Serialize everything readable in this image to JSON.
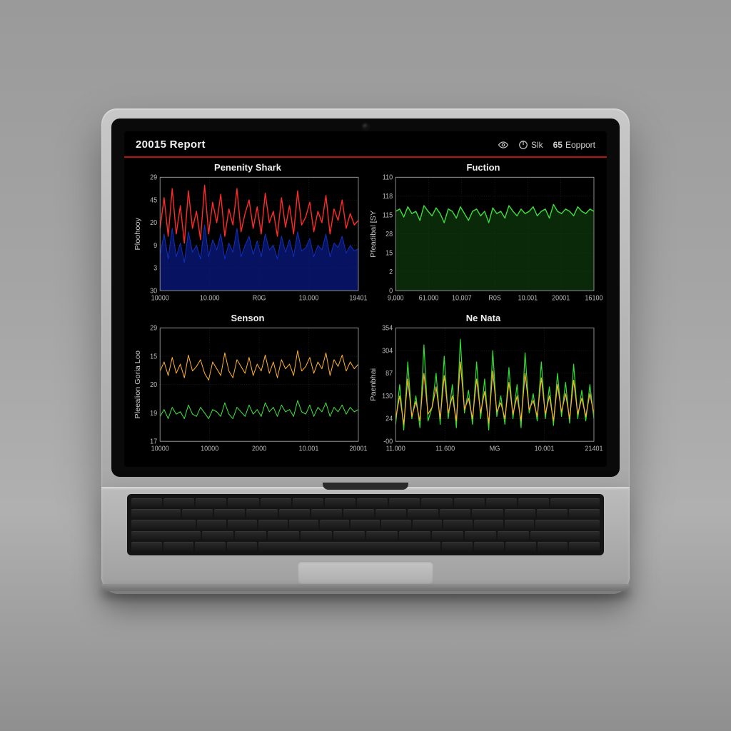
{
  "header": {
    "title": "20015 Report",
    "accent_color": "#b31919",
    "right": {
      "eye_label": "",
      "power_label": "Slk",
      "status_value": "65",
      "status_label": "Eopport"
    }
  },
  "screen": {
    "background": "#000000",
    "text_color": "#eeeeee",
    "grid_color": "#333333",
    "axis_color": "#888888",
    "tick_color": "#bbbbbb",
    "title_fontsize": 13,
    "tick_fontsize": 9,
    "ylabel_fontsize": 10
  },
  "charts": {
    "top_left": {
      "title": "Penenity Shark",
      "ylabel": "Ploohooy",
      "type": "line-area",
      "yticks": [
        "29",
        "45",
        "20",
        "9",
        "3",
        "30"
      ],
      "xticks": [
        "10000",
        "10.000",
        "R0G",
        "19.000",
        "19401"
      ],
      "series": [
        {
          "name": "red-jagged",
          "stroke": "#ff2a2a",
          "stroke_width": 1.4,
          "fill": "none",
          "points": [
            0.55,
            0.82,
            0.48,
            0.9,
            0.5,
            0.75,
            0.42,
            0.88,
            0.55,
            0.7,
            0.45,
            0.93,
            0.5,
            0.78,
            0.6,
            0.85,
            0.48,
            0.72,
            0.58,
            0.9,
            0.52,
            0.68,
            0.8,
            0.55,
            0.74,
            0.5,
            0.86,
            0.6,
            0.7,
            0.48,
            0.82,
            0.56,
            0.75,
            0.5,
            0.88,
            0.58,
            0.65,
            0.78,
            0.52,
            0.7,
            0.6,
            0.84,
            0.5,
            0.72,
            0.62,
            0.8,
            0.55,
            0.68,
            0.58,
            0.62
          ]
        },
        {
          "name": "blue-area",
          "stroke": "#1030c0",
          "stroke_width": 1,
          "fill": "#0a1a80",
          "fill_opacity": 0.75,
          "points": [
            0.32,
            0.5,
            0.28,
            0.55,
            0.3,
            0.42,
            0.25,
            0.52,
            0.34,
            0.4,
            0.28,
            0.58,
            0.3,
            0.45,
            0.36,
            0.5,
            0.28,
            0.42,
            0.34,
            0.55,
            0.3,
            0.4,
            0.48,
            0.32,
            0.44,
            0.3,
            0.5,
            0.36,
            0.4,
            0.28,
            0.48,
            0.34,
            0.45,
            0.3,
            0.52,
            0.35,
            0.38,
            0.46,
            0.3,
            0.4,
            0.36,
            0.5,
            0.3,
            0.42,
            0.38,
            0.48,
            0.33,
            0.4,
            0.35,
            0.37
          ]
        }
      ]
    },
    "top_right": {
      "title": "Fuction",
      "ylabel": "Pfeadibal [SY",
      "type": "line-area",
      "yticks": [
        "110",
        "118",
        "115",
        "28",
        "15",
        "2",
        "0"
      ],
      "xticks": [
        "9,000",
        "61.000",
        "10,007",
        "R0S",
        "10.001",
        "20001",
        "16100"
      ],
      "series": [
        {
          "name": "green-area",
          "stroke": "#3fd83f",
          "stroke_width": 1.4,
          "fill": "#0d3a0d",
          "fill_opacity": 0.7,
          "points": [
            0.7,
            0.72,
            0.65,
            0.74,
            0.68,
            0.7,
            0.62,
            0.75,
            0.7,
            0.66,
            0.73,
            0.68,
            0.6,
            0.72,
            0.7,
            0.64,
            0.74,
            0.68,
            0.62,
            0.7,
            0.72,
            0.66,
            0.7,
            0.6,
            0.73,
            0.68,
            0.7,
            0.64,
            0.75,
            0.7,
            0.66,
            0.72,
            0.68,
            0.7,
            0.74,
            0.66,
            0.7,
            0.72,
            0.64,
            0.76,
            0.7,
            0.68,
            0.72,
            0.7,
            0.66,
            0.74,
            0.7,
            0.68,
            0.72,
            0.7
          ]
        }
      ]
    },
    "bottom_left": {
      "title": "Senson",
      "ylabel": "Pleealion Goria Loo",
      "type": "multi-line",
      "yticks": [
        "29",
        "15",
        "20",
        "19",
        "17"
      ],
      "xticks": [
        "10000",
        "10000",
        "2000",
        "10.001",
        "20001"
      ],
      "series": [
        {
          "name": "orange-noise",
          "stroke": "#ffb030",
          "stroke_width": 1,
          "fill": "none",
          "points": [
            0.62,
            0.7,
            0.58,
            0.74,
            0.6,
            0.68,
            0.56,
            0.76,
            0.62,
            0.66,
            0.72,
            0.6,
            0.54,
            0.7,
            0.64,
            0.58,
            0.78,
            0.62,
            0.56,
            0.72,
            0.66,
            0.6,
            0.74,
            0.58,
            0.68,
            0.62,
            0.76,
            0.6,
            0.7,
            0.56,
            0.72,
            0.64,
            0.68,
            0.58,
            0.8,
            0.62,
            0.66,
            0.74,
            0.6,
            0.7,
            0.64,
            0.78,
            0.58,
            0.72,
            0.66,
            0.76,
            0.62,
            0.7,
            0.64,
            0.68
          ]
        },
        {
          "name": "green-lower",
          "stroke": "#40e040",
          "stroke_width": 1,
          "fill": "none",
          "points": [
            0.22,
            0.28,
            0.2,
            0.3,
            0.24,
            0.26,
            0.2,
            0.32,
            0.24,
            0.22,
            0.3,
            0.25,
            0.2,
            0.28,
            0.26,
            0.22,
            0.34,
            0.24,
            0.2,
            0.3,
            0.26,
            0.22,
            0.32,
            0.24,
            0.28,
            0.22,
            0.34,
            0.26,
            0.3,
            0.22,
            0.32,
            0.26,
            0.28,
            0.22,
            0.36,
            0.26,
            0.24,
            0.32,
            0.22,
            0.3,
            0.26,
            0.34,
            0.22,
            0.3,
            0.26,
            0.32,
            0.24,
            0.3,
            0.26,
            0.28
          ]
        }
      ]
    },
    "bottom_right": {
      "title": "Ne Nata",
      "ylabel": "Paenbhai",
      "type": "multi-line",
      "yticks": [
        "354",
        "304",
        "87",
        "130",
        "24",
        "-00"
      ],
      "xticks": [
        "11.000",
        "11.600",
        "MG",
        "10.001",
        "21401"
      ],
      "series": [
        {
          "name": "green-spikes",
          "stroke": "#30e030",
          "stroke_width": 1.2,
          "fill": "none",
          "points": [
            0.15,
            0.5,
            0.1,
            0.7,
            0.2,
            0.4,
            0.12,
            0.85,
            0.18,
            0.3,
            0.6,
            0.15,
            0.75,
            0.2,
            0.5,
            0.12,
            0.9,
            0.25,
            0.45,
            0.15,
            0.7,
            0.2,
            0.55,
            0.1,
            0.8,
            0.22,
            0.4,
            0.15,
            0.65,
            0.2,
            0.5,
            0.12,
            0.78,
            0.25,
            0.42,
            0.18,
            0.7,
            0.2,
            0.48,
            0.14,
            0.6,
            0.22,
            0.52,
            0.16,
            0.68,
            0.2,
            0.45,
            0.18,
            0.5,
            0.2
          ]
        },
        {
          "name": "orange-spikes",
          "stroke": "#ffad30",
          "stroke_width": 1.2,
          "fill": "none",
          "points": [
            0.2,
            0.4,
            0.15,
            0.55,
            0.22,
            0.35,
            0.18,
            0.6,
            0.24,
            0.3,
            0.48,
            0.2,
            0.58,
            0.25,
            0.4,
            0.18,
            0.7,
            0.28,
            0.38,
            0.2,
            0.55,
            0.25,
            0.44,
            0.16,
            0.62,
            0.26,
            0.34,
            0.2,
            0.52,
            0.24,
            0.4,
            0.18,
            0.6,
            0.28,
            0.36,
            0.22,
            0.56,
            0.24,
            0.4,
            0.18,
            0.5,
            0.26,
            0.42,
            0.2,
            0.54,
            0.24,
            0.38,
            0.22,
            0.42,
            0.24
          ]
        }
      ]
    }
  }
}
